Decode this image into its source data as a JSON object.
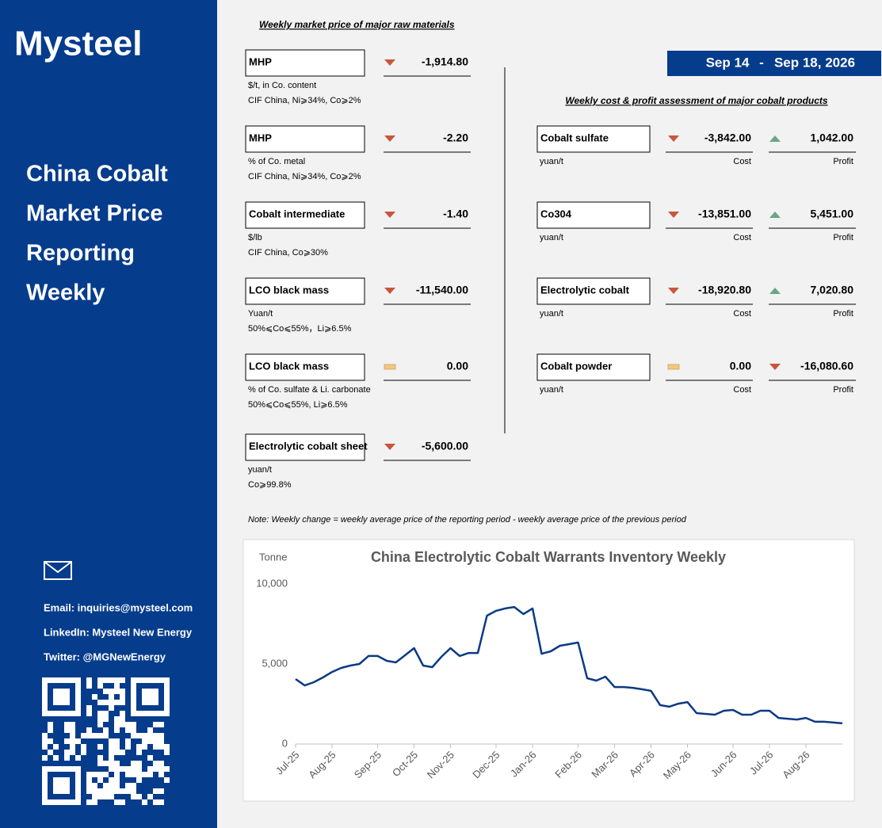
{
  "sidebar": {
    "logo": "Mysteel",
    "title_lines": [
      "China Cobalt",
      "Market Price",
      "Reporting",
      "Weekly"
    ],
    "email": "Email: inquiries@mysteel.com",
    "linkedin": "LinkedIn: Mysteel New Energy",
    "twitter": "Twitter: @MGNewEnergy"
  },
  "raw_materials": {
    "heading": "Weekly market price of major raw materials",
    "items": [
      {
        "name": "MHP",
        "trend": "down",
        "change": "-1,914.80",
        "unit": "$/t, in Co. content",
        "spec": "CIF China, Ni⩾34%, Co⩾2%"
      },
      {
        "name": "MHP",
        "trend": "down",
        "change": "-2.20",
        "unit": "% of Co. metal",
        "spec": "CIF China, Ni⩾34%, Co⩾2%"
      },
      {
        "name": "Cobalt intermediate",
        "trend": "down",
        "change": "-1.40",
        "unit": "$/lb",
        "spec": "CIF China, Co⩾30%"
      },
      {
        "name": "LCO black mass",
        "trend": "down",
        "change": "-11,540.00",
        "unit": "Yuan/t",
        "spec": "50%⩽Co⩽55%，Li⩾6.5%"
      },
      {
        "name": "LCO black mass",
        "trend": "flat",
        "change": "0.00",
        "unit": "% of Co. sulfate & Li. carbonate",
        "spec": "50%⩽Co⩽55%, Li⩾6.5%"
      },
      {
        "name": "Electrolytic cobalt sheet",
        "trend": "down",
        "change": "-5,600.00",
        "unit": "yuan/t",
        "spec": "Co⩾99.8%"
      }
    ]
  },
  "date_range": {
    "start": "Sep 14",
    "separator": "-",
    "end": "Sep 18, 2026"
  },
  "cost_profit": {
    "heading": "Weekly cost & profit assessment of major cobalt products",
    "items": [
      {
        "name": "Cobalt sulfate",
        "unit": "yuan/t",
        "cost_trend": "down",
        "cost": "-3,842.00",
        "cost_label": "Cost",
        "profit_trend": "up",
        "profit": "1,042.00",
        "profit_label": "Profit"
      },
      {
        "name": "Co304",
        "unit": "yuan/t",
        "cost_trend": "down",
        "cost": "-13,851.00",
        "cost_label": "Cost",
        "profit_trend": "up",
        "profit": "5,451.00",
        "profit_label": "Profit"
      },
      {
        "name": "Electrolytic cobalt",
        "unit": "yuan/t",
        "cost_trend": "down",
        "cost": "-18,920.80",
        "cost_label": "Cost",
        "profit_trend": "up",
        "profit": "7,020.80",
        "profit_label": "Profit"
      },
      {
        "name": "Cobalt powder",
        "unit": "yuan/t",
        "cost_trend": "flat",
        "cost": "0.00",
        "cost_label": "Cost",
        "profit_trend": "down",
        "profit": "-16,080.60",
        "profit_label": "Profit"
      }
    ]
  },
  "note": "Note: Weekly change = weekly average price of the reporting period - weekly average price of the previous period",
  "chart_data": {
    "type": "line",
    "title": "China Electrolytic Cobalt Warrants Inventory Weekly",
    "y_label": "Tonne",
    "categories": [
      "Jul-25",
      null,
      null,
      null,
      "Aug-25",
      null,
      null,
      null,
      null,
      "Sep-25",
      null,
      null,
      null,
      "Oct-25",
      null,
      null,
      null,
      "Nov-25",
      null,
      null,
      null,
      null,
      "Dec-25",
      null,
      null,
      null,
      "Jan-26",
      null,
      null,
      null,
      null,
      "Feb-26",
      null,
      null,
      null,
      "Mar-26",
      null,
      null,
      null,
      "Apr-26",
      null,
      null,
      null,
      "May-26",
      null,
      null,
      null,
      null,
      "Jun-26",
      null,
      null,
      null,
      "Jul-26",
      null,
      null,
      null,
      "Aug-26",
      null,
      null,
      null,
      null
    ],
    "values": [
      4060,
      3660,
      3860,
      4160,
      4500,
      4750,
      4900,
      5000,
      5500,
      5500,
      5200,
      5100,
      5540,
      5990,
      4900,
      4800,
      5450,
      5990,
      5500,
      5690,
      5690,
      8020,
      8320,
      8470,
      8560,
      8120,
      8470,
      5640,
      5790,
      6140,
      6240,
      6340,
      4110,
      3960,
      4210,
      3560,
      3560,
      3510,
      3420,
      3320,
      2430,
      2330,
      2520,
      2620,
      1930,
      1880,
      1830,
      2080,
      2130,
      1830,
      1830,
      2080,
      2080,
      1630,
      1580,
      1530,
      1630,
      1390,
      1390,
      1340,
      1290
    ],
    "color": "#0b3a84",
    "ylim": [
      0,
      10000
    ],
    "yticks": [
      0,
      {
        "value": 5000,
        "label": "5,000"
      },
      {
        "value": 10000,
        "label": "10,000"
      }
    ],
    "grid": false
  }
}
